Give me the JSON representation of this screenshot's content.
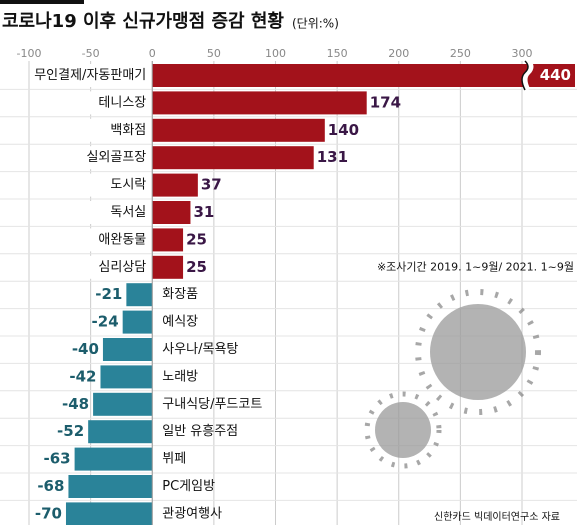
{
  "chart_data": {
    "type": "bar",
    "orientation": "horizontal",
    "title": "코로나19 이후 신규가맹점 증감 현황",
    "subtitle": "(단위:%)",
    "categories": [
      "무인결제/자동판매기",
      "테니스장",
      "백화점",
      "실외골프장",
      "도시락",
      "독서실",
      "애완동물",
      "심리상담",
      "화장품",
      "예식장",
      "사우나/목욕탕",
      "노래방",
      "구내식당/푸드코트",
      "일반 유흥주점",
      "뷔페",
      "PC게임방",
      "관광여행사"
    ],
    "values": [
      440,
      174,
      140,
      131,
      37,
      31,
      25,
      25,
      -21,
      -24,
      -40,
      -42,
      -48,
      -52,
      -63,
      -68,
      -70
    ],
    "positive_color": "#a3121b",
    "negative_color": "#2a8399",
    "xlim": [
      -100,
      300
    ],
    "xticks": [
      -100,
      -50,
      0,
      50,
      100,
      150,
      200,
      250,
      300
    ],
    "axis_break": true,
    "note": "※조사기간 2019. 1~9월/ 2021. 1~9월",
    "source": "신한카드 빅데이터연구소 자료"
  }
}
